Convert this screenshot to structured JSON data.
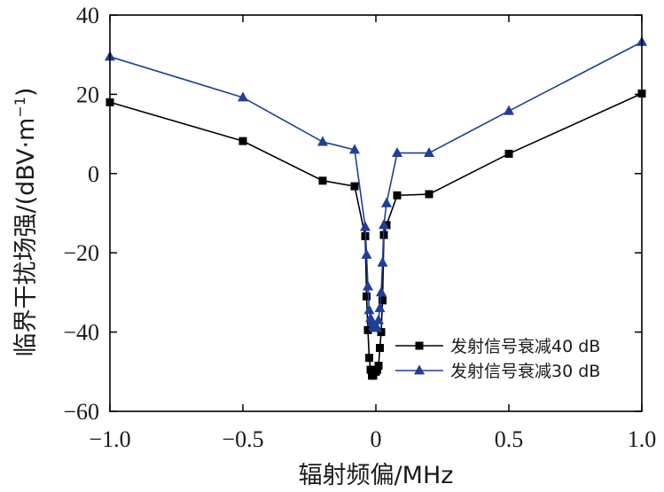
{
  "chart_data": {
    "type": "line",
    "title": "",
    "xlabel": "辐射频偏/MHz",
    "ylabel_main": "临界干扰场强/(dBV·m",
    "ylabel_sup": "−1",
    "ylabel_close": ")",
    "xlim": [
      -1.0,
      1.0
    ],
    "ylim": [
      -60,
      40
    ],
    "xticks": [
      -1.0,
      -0.5,
      0,
      0.5,
      1.0
    ],
    "xtick_labels": [
      "−1.0",
      "−0.5",
      "0",
      "0.5",
      "1.0"
    ],
    "yticks": [
      -60,
      -40,
      -20,
      0,
      20,
      40
    ],
    "ytick_labels": [
      "−60",
      "−40",
      "−20",
      "0",
      "20",
      "40"
    ],
    "legend_position": "lower-right",
    "series": [
      {
        "name": "发射信号衰减40 dB",
        "color": "#000000",
        "marker": "square",
        "x": [
          -1.0,
          -0.5,
          -0.2,
          -0.08,
          -0.04,
          -0.035,
          -0.03,
          -0.025,
          -0.02,
          -0.015,
          -0.01,
          -0.005,
          0,
          0.005,
          0.01,
          0.015,
          0.02,
          0.025,
          0.03,
          0.04,
          0.08,
          0.2,
          0.5,
          1.0
        ],
        "y": [
          18,
          8.2,
          -1.8,
          -3.2,
          -15.8,
          -31,
          -39.5,
          -46.5,
          -49.5,
          -51,
          -51,
          -50,
          -50,
          -49.5,
          -48.5,
          -44,
          -40,
          -32,
          -15.5,
          -13,
          -5.5,
          -5.2,
          5,
          20.2
        ]
      },
      {
        "name": "发射信号衰减30 dB",
        "color": "#1f3f99",
        "marker": "triangle",
        "x": [
          -1.0,
          -0.5,
          -0.2,
          -0.08,
          -0.04,
          -0.035,
          -0.03,
          -0.025,
          -0.02,
          -0.015,
          -0.01,
          -0.005,
          0,
          0.005,
          0.01,
          0.015,
          0.02,
          0.025,
          0.03,
          0.04,
          0.08,
          0.2,
          0.5,
          1.0
        ],
        "y": [
          29.5,
          19.2,
          8,
          6,
          -13.5,
          -20.5,
          -28.5,
          -34.5,
          -36.5,
          -37.5,
          -38.5,
          -39,
          -39,
          -39,
          -37,
          -34,
          -30,
          -22.5,
          -13,
          -7.5,
          5.2,
          5.2,
          15.8,
          33.2
        ]
      }
    ]
  }
}
